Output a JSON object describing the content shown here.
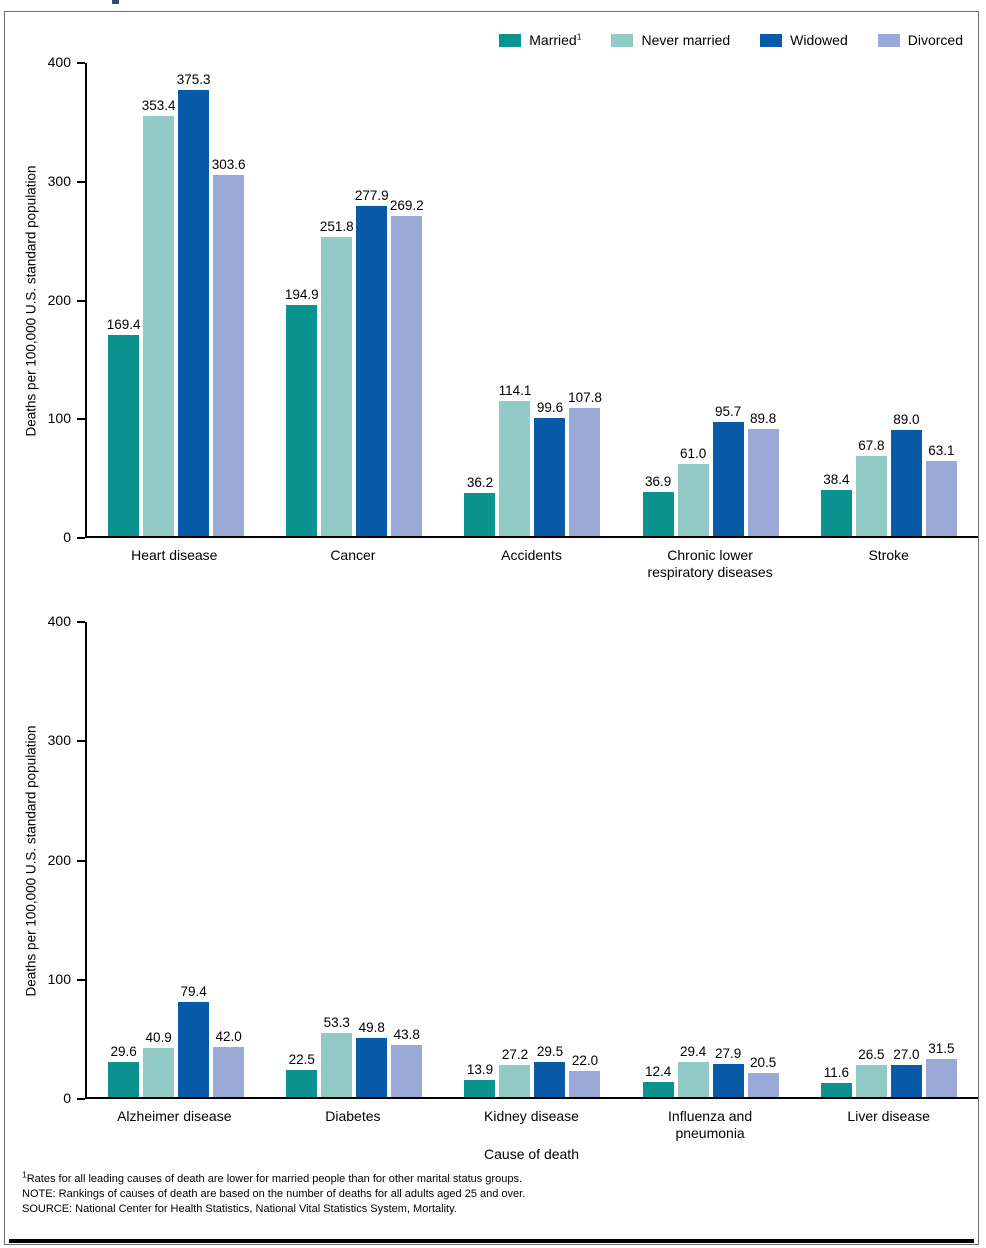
{
  "figure": {
    "legend": [
      {
        "name": "Married",
        "superscript": "1",
        "color": "#0a938f"
      },
      {
        "name": "Never married",
        "superscript": "",
        "color": "#92cac5"
      },
      {
        "name": "Widowed",
        "superscript": "",
        "color": "#0a5ba7"
      },
      {
        "name": "Divorced",
        "superscript": "",
        "color": "#9aa9d6"
      }
    ],
    "footnotes": {
      "footnote1_sup": "1",
      "footnote1": "Rates for all leading causes of death are lower for married people than for other marital status groups.",
      "note": "NOTE: Rankings of causes of death are based on the number of deaths for all adults aged 25 and over.",
      "source": "SOURCE: National Center for Health Statistics, National Vital Statistics System, Mortality."
    }
  },
  "chart_data": [
    {
      "type": "bar",
      "panel": "top",
      "categories": [
        "Heart disease",
        "Cancer",
        "Accidents",
        "Chronic lower\nrespiratory diseases",
        "Stroke"
      ],
      "series": [
        {
          "name": "Married",
          "color": "#0a938f",
          "values": [
            169.4,
            194.9,
            36.2,
            36.9,
            38.4
          ]
        },
        {
          "name": "Never married",
          "color": "#92cac5",
          "values": [
            353.4,
            251.8,
            114.1,
            61.0,
            67.8
          ]
        },
        {
          "name": "Widowed",
          "color": "#0a5ba7",
          "values": [
            375.3,
            277.9,
            99.6,
            95.7,
            89.0
          ]
        },
        {
          "name": "Divorced",
          "color": "#9aa9d6",
          "values": [
            303.6,
            269.2,
            107.8,
            89.8,
            63.1
          ]
        }
      ],
      "ylabel": "Deaths per 100,000 U.S. standard population",
      "xlabel": "",
      "ylim": [
        0,
        400
      ],
      "yticks": [
        0,
        100,
        200,
        300,
        400
      ],
      "grid": false,
      "legend_position": "top-right",
      "value_labels": true
    },
    {
      "type": "bar",
      "panel": "bottom",
      "categories": [
        "Alzheimer disease",
        "Diabetes",
        "Kidney disease",
        "Influenza and\npneumonia",
        "Liver disease"
      ],
      "series": [
        {
          "name": "Married",
          "color": "#0a938f",
          "values": [
            29.6,
            22.5,
            13.9,
            12.4,
            11.6
          ]
        },
        {
          "name": "Never married",
          "color": "#92cac5",
          "values": [
            40.9,
            53.3,
            27.2,
            29.4,
            26.5
          ]
        },
        {
          "name": "Widowed",
          "color": "#0a5ba7",
          "values": [
            79.4,
            49.8,
            29.5,
            27.9,
            27.0
          ]
        },
        {
          "name": "Divorced",
          "color": "#9aa9d6",
          "values": [
            42.0,
            43.8,
            22.0,
            20.5,
            31.5
          ]
        }
      ],
      "ylabel": "Deaths per 100,000 U.S. standard population",
      "xlabel": "Cause of death",
      "ylim": [
        0,
        400
      ],
      "yticks": [
        0,
        100,
        200,
        300,
        400
      ],
      "grid": false,
      "value_labels": true
    }
  ]
}
